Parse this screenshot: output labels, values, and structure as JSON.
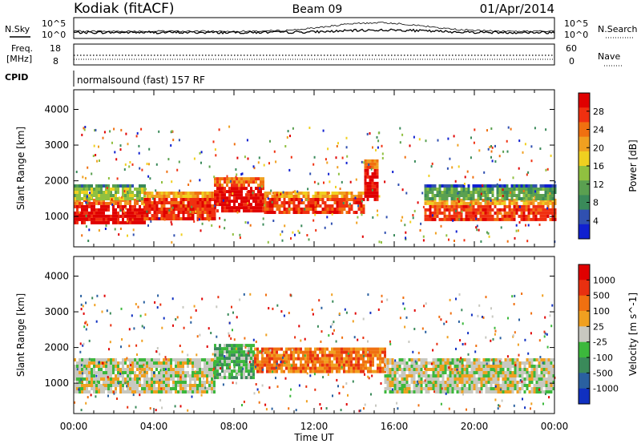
{
  "header": {
    "station": "Kodiak (fitACF)",
    "beam": "Beam 09",
    "date": "01/Apr/2014",
    "cpid_label": "CPID",
    "cpid_text": "normalsound (fast) 157 RF"
  },
  "top_panels": {
    "nsky_label": "N.Sky",
    "nsearch_label": "N.Search",
    "nsky_ticks": [
      "10^5",
      "10^0"
    ],
    "nsearch_ticks": [
      "10^5",
      "10^0"
    ],
    "freq_label_1": "Freq.",
    "freq_label_2": "[MHz]",
    "freq_ticks": [
      "18",
      "8"
    ],
    "nave_label": "Nave",
    "nave_ticks": [
      "60",
      "0"
    ]
  },
  "colors": {
    "power": [
      "#1020d0",
      "#3050b0",
      "#3a8a5a",
      "#5aa050",
      "#90c040",
      "#f0d020",
      "#f0a020",
      "#f07010",
      "#f03010",
      "#e00000"
    ],
    "velocity": [
      "#1030c0",
      "#2a60a0",
      "#3a8a5a",
      "#3cb83c",
      "#c8c8c0",
      "#f0a020",
      "#f07010",
      "#e83010",
      "#e00000"
    ]
  },
  "chart_data": [
    {
      "type": "heatmap",
      "title": "Power",
      "xlabel": "",
      "ylabel": "Slant Range [km]",
      "xlim": [
        "00:00",
        "24:00"
      ],
      "x_ticks": [
        "00:00",
        "04:00",
        "08:00",
        "12:00",
        "16:00",
        "20:00",
        "00:00"
      ],
      "y_ticks": [
        1000,
        2000,
        3000,
        4000
      ],
      "ylim": [
        150,
        4550
      ],
      "colorbar_label": "Power [dB]",
      "colorbar_ticks": [
        "4",
        "8",
        "12",
        "16",
        "20",
        "24",
        "28"
      ],
      "colorbar_range": [
        0,
        32
      ],
      "bands": [
        {
          "start_h": 0.0,
          "end_h": 3.5,
          "y_low": 800,
          "y_high": 1500,
          "level": 9
        },
        {
          "start_h": 0.0,
          "end_h": 3.5,
          "y_low": 1500,
          "y_high": 1900,
          "level": 4
        },
        {
          "start_h": 3.5,
          "end_h": 7.0,
          "y_low": 900,
          "y_high": 1700,
          "level": 8
        },
        {
          "start_h": 7.0,
          "end_h": 9.5,
          "y_low": 1200,
          "y_high": 2100,
          "level": 9
        },
        {
          "start_h": 9.5,
          "end_h": 14.5,
          "y_low": 1100,
          "y_high": 1700,
          "level": 8
        },
        {
          "start_h": 14.5,
          "end_h": 15.2,
          "y_low": 1500,
          "y_high": 2600,
          "level": 9
        },
        {
          "start_h": 17.5,
          "end_h": 24.0,
          "y_low": 900,
          "y_high": 1500,
          "level": 8
        },
        {
          "start_h": 17.5,
          "end_h": 24.0,
          "y_low": 1500,
          "y_high": 1900,
          "level": 3
        }
      ]
    },
    {
      "type": "heatmap",
      "title": "Velocity",
      "xlabel": "Time UT",
      "ylabel": "Slant Range [km]",
      "xlim": [
        "00:00",
        "24:00"
      ],
      "x_ticks": [
        "00:00",
        "04:00",
        "08:00",
        "12:00",
        "16:00",
        "20:00",
        "00:00"
      ],
      "y_ticks": [
        1000,
        2000,
        3000,
        4000
      ],
      "ylim": [
        150,
        4550
      ],
      "colorbar_label": "Velocity [m s^-1]",
      "colorbar_ticks": [
        "1000",
        "500",
        "100",
        "25",
        "-25",
        "-100",
        "-500",
        "-1000"
      ],
      "bands": [
        {
          "start_h": 0.0,
          "end_h": 7.0,
          "y_low": 800,
          "y_high": 1700,
          "level": 4
        },
        {
          "start_h": 7.0,
          "end_h": 9.0,
          "y_low": 1200,
          "y_high": 2100,
          "level": 3
        },
        {
          "start_h": 9.0,
          "end_h": 15.5,
          "y_low": 1300,
          "y_high": 2000,
          "level": 6
        },
        {
          "start_h": 15.5,
          "end_h": 24.0,
          "y_low": 800,
          "y_high": 1700,
          "level": 4
        }
      ]
    }
  ]
}
